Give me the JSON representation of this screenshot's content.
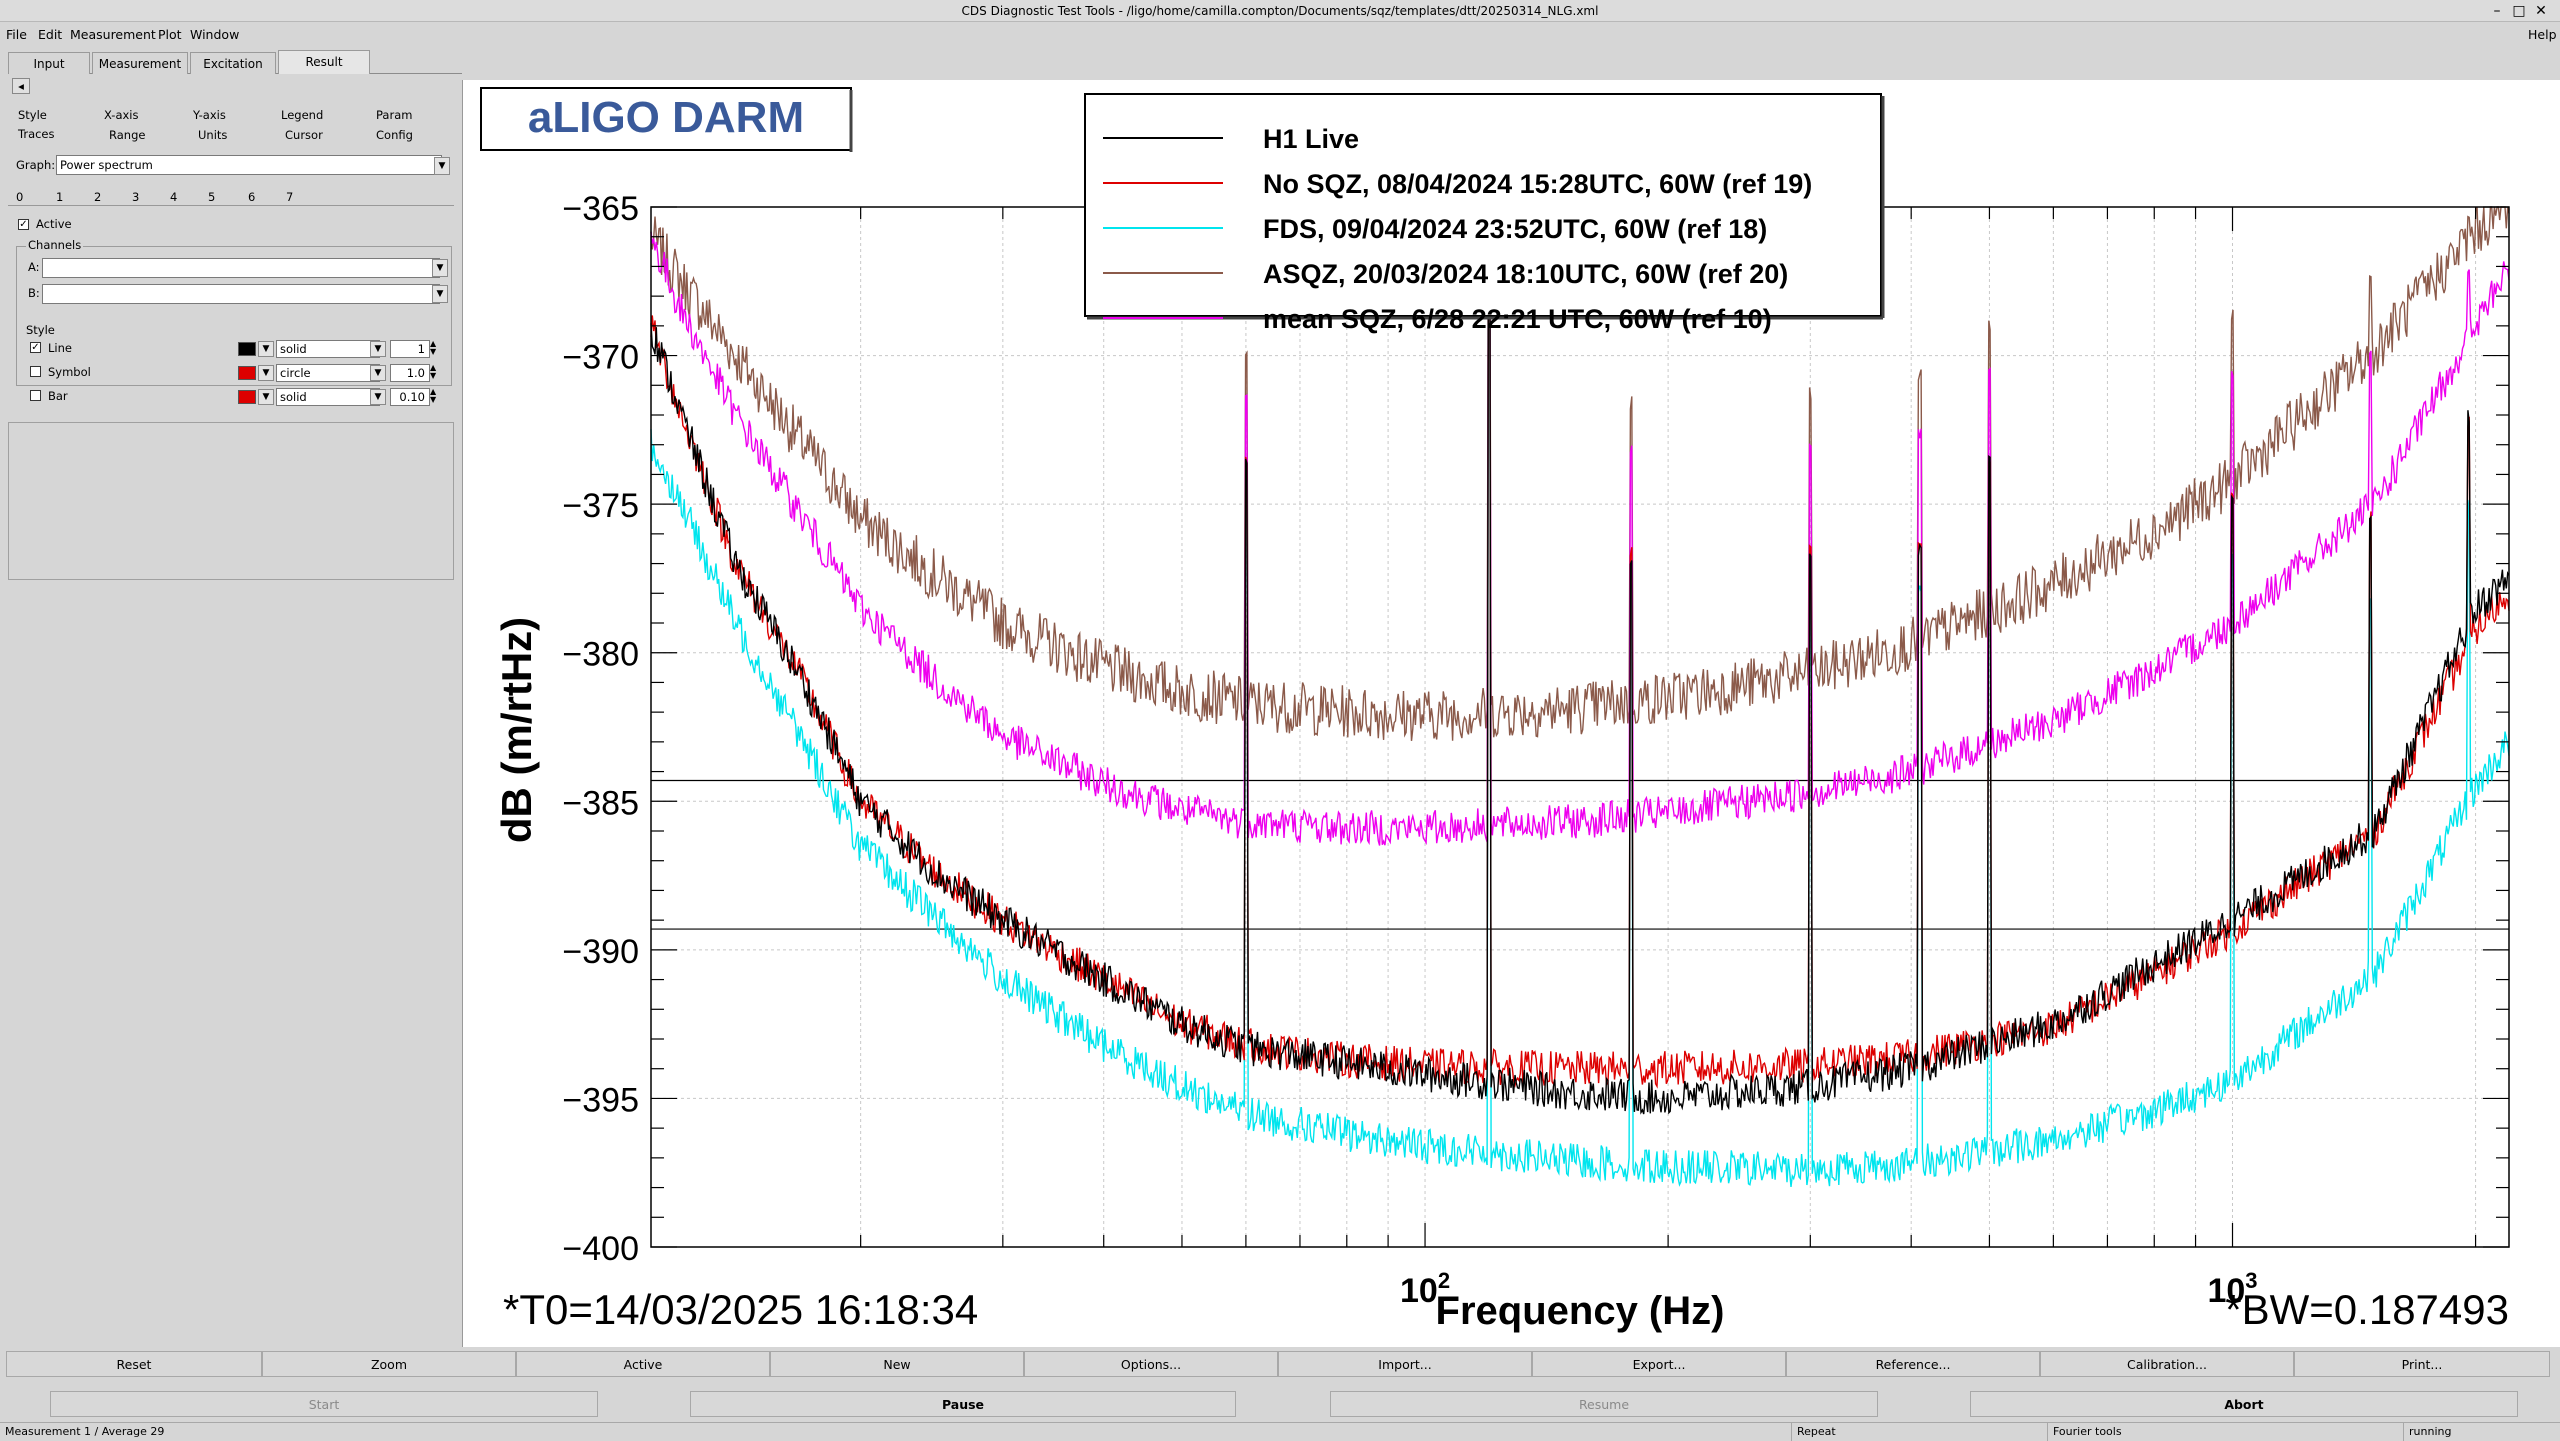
{
  "window": {
    "title": "CDS Diagnostic Test Tools - /ligo/home/camilla.compton/Documents/sqz/templates/dtt/20250314_NLG.xml",
    "controls": [
      "–",
      "□",
      "✕"
    ]
  },
  "menu": {
    "file": "File",
    "edit": "Edit",
    "measurement": "Measurement",
    "plot": "Plot",
    "window": "Window",
    "help": "Help"
  },
  "tabs": [
    "Input",
    "Measurement",
    "Excitation",
    "Result"
  ],
  "panel": {
    "collapse_arrow": "◂",
    "subtabs_row1": [
      "Style",
      "X-axis",
      "Y-axis",
      "Legend",
      "Param"
    ],
    "subtabs_row2": [
      "Traces",
      "Range",
      "Units",
      "Cursor",
      "Config"
    ],
    "graph_label": "Graph:",
    "graph_value": "Power spectrum",
    "trace_tabs": [
      "0",
      "1",
      "2",
      "3",
      "4",
      "5",
      "6",
      "7"
    ],
    "active_label": "Active",
    "channels_label": "Channels",
    "channel_a_label": "A:",
    "channel_b_label": "B:",
    "style_label": "Style",
    "line_label": "Line",
    "line_style": "solid",
    "line_width": "1",
    "symbol_label": "Symbol",
    "symbol_style": "circle",
    "symbol_size": "1.0",
    "bar_label": "Bar",
    "bar_style": "solid",
    "bar_width": "0.10",
    "colors": {
      "line": "#000000",
      "symbol": "#dd0000",
      "bar": "#dd0000"
    }
  },
  "plot": {
    "title_box": "aLIGO DARM",
    "t0": "*T0=14/03/2025 16:18:34",
    "bw": "*BW=0.187493"
  },
  "chart_data": {
    "type": "line",
    "xlabel": "Frequency (Hz)",
    "ylabel": "dB (m/rtHz)",
    "xscale": "log",
    "xlim": [
      11,
      2200
    ],
    "ylim": [
      -400,
      -365
    ],
    "ytick_labels": [
      "−365",
      "−370",
      "−375",
      "−380",
      "−385",
      "−390",
      "−395",
      "−400"
    ],
    "xtick_labels": [
      {
        "base": "10",
        "exp": "2"
      },
      {
        "base": "10",
        "exp": "3"
      }
    ],
    "hlines": [
      -384.3,
      -389.3
    ],
    "legend_position": "top-center",
    "series": [
      {
        "name": "H1 Live",
        "color": "#000000",
        "x": [
          11,
          12,
          14,
          17,
          20,
          25,
          30,
          40,
          50,
          60,
          80,
          100,
          150,
          200,
          300,
          400,
          600,
          800,
          1000,
          1500,
          2000,
          2200
        ],
        "y": [
          -369,
          -372,
          -377,
          -381,
          -385,
          -387.5,
          -389,
          -391,
          -392.5,
          -393.3,
          -393.8,
          -394.2,
          -394.8,
          -395,
          -394.6,
          -394,
          -392.5,
          -390.5,
          -389,
          -386,
          -378.5,
          -377.5
        ]
      },
      {
        "name": "No SQZ, 08/04/2024 15:28UTC, 60W (ref 19)",
        "color": "#dd0000",
        "x": [
          11,
          12,
          14,
          17,
          20,
          25,
          30,
          40,
          50,
          60,
          80,
          100,
          150,
          200,
          300,
          400,
          600,
          800,
          1000,
          1500,
          2000,
          2200
        ],
        "y": [
          -369,
          -372,
          -377,
          -381,
          -385,
          -387.5,
          -389,
          -391,
          -392.5,
          -393.2,
          -393.7,
          -393.9,
          -394,
          -394,
          -393.9,
          -393.6,
          -392.6,
          -390.8,
          -389.3,
          -386,
          -379.2,
          -378
        ]
      },
      {
        "name": "FDS, 09/04/2024 23:52UTC, 60W (ref 18)",
        "color": "#00e5ee",
        "x": [
          11,
          12,
          14,
          17,
          20,
          25,
          30,
          40,
          50,
          60,
          80,
          100,
          150,
          200,
          300,
          400,
          600,
          800,
          1000,
          1500,
          2000,
          2200
        ],
        "y": [
          -373,
          -375,
          -379,
          -383,
          -386.5,
          -389,
          -391,
          -393.2,
          -394.6,
          -395.5,
          -396.2,
          -396.6,
          -397.1,
          -397.3,
          -397.4,
          -397.2,
          -396.4,
          -395.4,
          -394.4,
          -390.8,
          -384.5,
          -383
        ]
      },
      {
        "name": "ASQZ, 20/03/2024 18:10UTC, 60W (ref 20)",
        "color": "#8b5a4a",
        "x": [
          11,
          12,
          14,
          17,
          20,
          25,
          30,
          40,
          50,
          60,
          80,
          100,
          150,
          200,
          300,
          400,
          600,
          800,
          1000,
          1500,
          2000,
          2200
        ],
        "y": [
          -366,
          -367.5,
          -370,
          -373,
          -375.5,
          -377.5,
          -379,
          -380.5,
          -381.3,
          -381.7,
          -382,
          -382.1,
          -381.9,
          -381.5,
          -380.7,
          -379.7,
          -377.7,
          -375.9,
          -374.2,
          -369.8,
          -365.8,
          -364.8
        ]
      },
      {
        "name": "mean SQZ, 6/28 22:21 UTC, 60W (ref 10)",
        "color": "#ee00ee",
        "x": [
          11,
          12,
          14,
          17,
          20,
          25,
          30,
          40,
          50,
          60,
          80,
          100,
          150,
          200,
          300,
          400,
          600,
          800,
          1000,
          1500,
          2000,
          2200
        ],
        "y": [
          -366,
          -368.5,
          -372,
          -375.5,
          -378.5,
          -381,
          -382.8,
          -384.4,
          -385.3,
          -385.7,
          -385.9,
          -385.9,
          -385.7,
          -385.4,
          -384.7,
          -384,
          -382.3,
          -380.6,
          -379,
          -375,
          -369,
          -367
        ]
      }
    ]
  },
  "buttons_row1": [
    "Reset",
    "Zoom",
    "Active",
    "New",
    "Options...",
    "Import...",
    "Export...",
    "Reference...",
    "Calibration...",
    "Print..."
  ],
  "buttons_row2": [
    "Start",
    "Pause",
    "Resume",
    "Abort"
  ],
  "status": {
    "measurement": "Measurement 1 / Average 29",
    "repeat": "Repeat",
    "tools": "Fourier tools",
    "state": "running"
  }
}
